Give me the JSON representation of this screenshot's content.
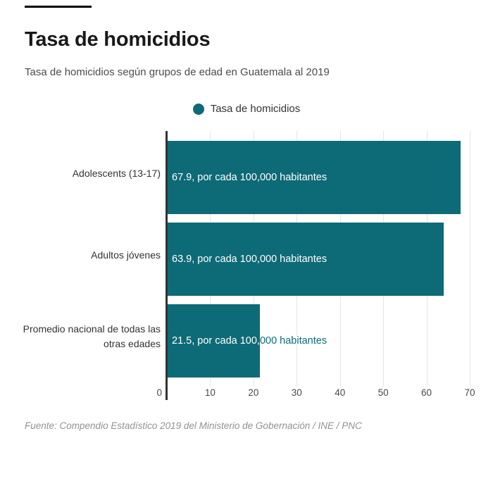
{
  "header": {
    "title": "Tasa de homicidios",
    "subtitle": "Tasa de homicidios según grupos de edad en Guatemala al 2019"
  },
  "legend": {
    "label": "Tasa de homicidios",
    "color": "#0d6b77"
  },
  "chart_data": {
    "type": "bar",
    "orientation": "horizontal",
    "title": "Tasa de homicidios",
    "subtitle": "Tasa de homicidios según grupos de edad en Guatemala al 2019",
    "categories": [
      "Adolescents (13-17)",
      "Adultos jóvenes",
      "Promedio nacional de todas las otras edades"
    ],
    "values": [
      67.9,
      63.9,
      21.5
    ],
    "bar_labels": [
      "67.9, por cada 100,000 habitantes",
      "63.9, por cada 100,000 habitantes",
      "21.5, por cada 100,000 habitantes"
    ],
    "x_ticks": [
      0,
      10,
      20,
      30,
      40,
      50,
      60,
      70
    ],
    "xlim": [
      0,
      70
    ],
    "bar_color": "#0d6b77",
    "grid": true,
    "gridline_color": "#e5e5e5",
    "axis_line_color": "#333333",
    "legend_position": "top-center"
  },
  "footer": {
    "source": "Fuente: Compendio Estadístico 2019 del Ministerio de Gobernación / INE / PNC"
  }
}
